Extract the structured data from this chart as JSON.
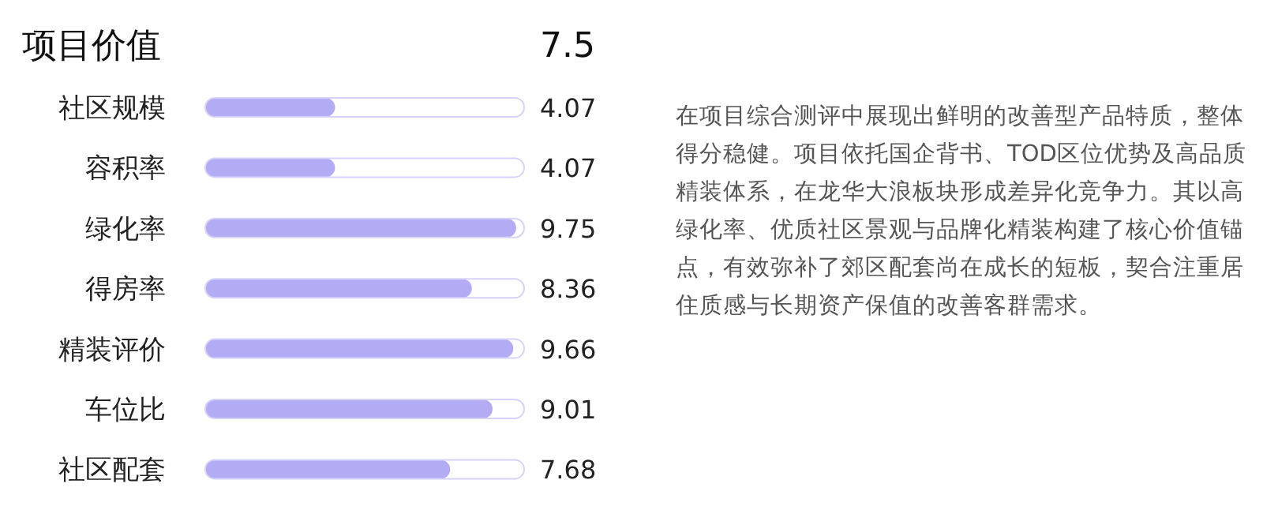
{
  "chart_data": {
    "type": "bar",
    "orientation": "horizontal",
    "title": "项目价值",
    "subtitle": "7.5",
    "categories": [
      "社区规模",
      "容积率",
      "绿化率",
      "得房率",
      "精装评价",
      "车位比",
      "社区配套"
    ],
    "values": [
      4.07,
      4.07,
      9.75,
      8.36,
      9.66,
      9.01,
      7.68
    ],
    "color": "#b3acf5",
    "xlim": [
      0,
      10
    ],
    "data_labels": true,
    "annotations": [
      "在项目综合测评中展现出鲜明的改善型产品特质，整体得分稳健。项目依托国企背书、TOD区位优势及高品质精装体系，在龙华大浪板块形成差异化竞争力。其以高绿化率、优质社区景观与品牌化精装构建了核心价值锚点，有效弥补了郊区配套尚在成长的短板，契合注重居住质感与长期资产保值的改善客群需求。"
    ]
  }
}
